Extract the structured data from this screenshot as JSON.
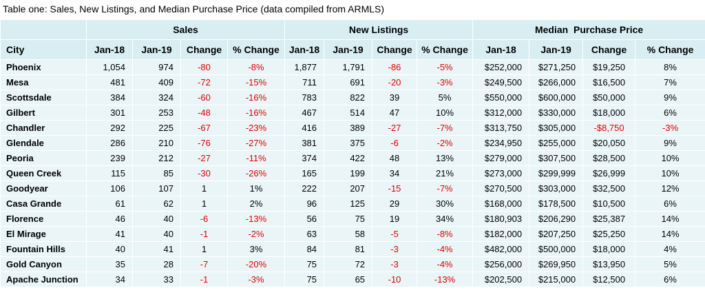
{
  "title": "Table one: Sales, New Listings, and Median Purchase Price (data compiled from ARMLS)",
  "table": {
    "groups": [
      "Sales",
      "New Listings",
      "Median  Purchase Price"
    ],
    "columns": [
      "City",
      "Jan-18",
      "Jan-19",
      "Change",
      "% Change",
      "Jan-18",
      "Jan-19",
      "Change",
      "% Change",
      "Jan-18",
      "Jan-19",
      "Change",
      "% Change"
    ],
    "rows": [
      [
        "Phoenix",
        "1,054",
        "974",
        "-80",
        "-8%",
        "1,877",
        "1,791",
        "-86",
        "-5%",
        "$252,000",
        "$271,250",
        "$19,250",
        "8%"
      ],
      [
        "Mesa",
        "481",
        "409",
        "-72",
        "-15%",
        "711",
        "691",
        "-20",
        "-3%",
        "$249,500",
        "$266,000",
        "$16,500",
        "7%"
      ],
      [
        "Scottsdale",
        "384",
        "324",
        "-60",
        "-16%",
        "783",
        "822",
        "39",
        "5%",
        "$550,000",
        "$600,000",
        "$50,000",
        "9%"
      ],
      [
        "Gilbert",
        "301",
        "253",
        "-48",
        "-16%",
        "467",
        "514",
        "47",
        "10%",
        "$312,000",
        "$330,000",
        "$18,000",
        "6%"
      ],
      [
        "Chandler",
        "292",
        "225",
        "-67",
        "-23%",
        "416",
        "389",
        "-27",
        "-7%",
        "$313,750",
        "$305,000",
        "-$8,750",
        "-3%"
      ],
      [
        "Glendale",
        "286",
        "210",
        "-76",
        "-27%",
        "381",
        "375",
        "-6",
        "-2%",
        "$234,950",
        "$255,000",
        "$20,050",
        "9%"
      ],
      [
        "Peoria",
        "239",
        "212",
        "-27",
        "-11%",
        "374",
        "422",
        "48",
        "13%",
        "$279,000",
        "$307,500",
        "$28,500",
        "10%"
      ],
      [
        "Queen Creek",
        "115",
        "85",
        "-30",
        "-26%",
        "165",
        "199",
        "34",
        "21%",
        "$273,000",
        "$299,999",
        "$26,999",
        "10%"
      ],
      [
        "Goodyear",
        "106",
        "107",
        "1",
        "1%",
        "222",
        "207",
        "-15",
        "-7%",
        "$270,500",
        "$303,000",
        "$32,500",
        "12%"
      ],
      [
        "Casa Grande",
        "61",
        "62",
        "1",
        "2%",
        "96",
        "125",
        "29",
        "30%",
        "$168,000",
        "$178,500",
        "$10,500",
        "6%"
      ],
      [
        "Florence",
        "46",
        "40",
        "-6",
        "-13%",
        "56",
        "75",
        "19",
        "34%",
        "$180,903",
        "$206,290",
        "$25,387",
        "14%"
      ],
      [
        "El Mirage",
        "41",
        "40",
        "-1",
        "-2%",
        "63",
        "58",
        "-5",
        "-8%",
        "$182,000",
        "$207,250",
        "$25,250",
        "14%"
      ],
      [
        "Fountain Hills",
        "40",
        "41",
        "1",
        "3%",
        "84",
        "81",
        "-3",
        "-4%",
        "$482,000",
        "$500,000",
        "$18,000",
        "4%"
      ],
      [
        "Gold Canyon",
        "35",
        "28",
        "-7",
        "-20%",
        "75",
        "72",
        "-3",
        "-4%",
        "$256,000",
        "$269,950",
        "$13,950",
        "5%"
      ],
      [
        "Apache Junction",
        "34",
        "33",
        "-1",
        "-3%",
        "75",
        "65",
        "-10",
        "-13%",
        "$202,500",
        "$215,000",
        "$12,500",
        "6%"
      ]
    ]
  }
}
